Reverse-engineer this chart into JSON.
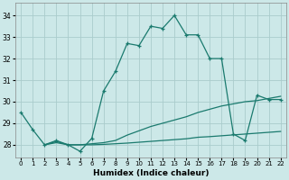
{
  "xlabel": "Humidex (Indice chaleur)",
  "background_color": "#cce8e8",
  "grid_color": "#aacccc",
  "line_color": "#1a7a6e",
  "xlim": [
    -0.5,
    22.5
  ],
  "ylim": [
    27.4,
    34.6
  ],
  "yticks": [
    28,
    29,
    30,
    31,
    32,
    33,
    34
  ],
  "xticks": [
    0,
    1,
    2,
    3,
    4,
    5,
    6,
    7,
    8,
    9,
    10,
    11,
    12,
    13,
    14,
    15,
    16,
    17,
    18,
    19,
    20,
    21,
    22
  ],
  "lines": [
    {
      "x": [
        0,
        1,
        2,
        3,
        4,
        5,
        6,
        7,
        8,
        9,
        10,
        11,
        12,
        13,
        14,
        15,
        16,
        17,
        18,
        19,
        20,
        21,
        22
      ],
      "y": [
        29.5,
        28.7,
        28.0,
        28.2,
        28.0,
        27.7,
        28.3,
        30.5,
        31.4,
        32.7,
        32.6,
        33.5,
        33.4,
        34.0,
        33.1,
        33.1,
        32.0,
        32.0,
        28.5,
        28.2,
        30.3,
        30.1,
        30.1
      ],
      "marker": true
    },
    {
      "x": [
        2,
        3,
        4,
        5,
        6,
        7,
        8,
        9,
        10,
        11,
        12,
        13,
        14,
        15,
        16,
        17,
        18,
        19,
        20,
        21,
        22
      ],
      "y": [
        28.0,
        28.15,
        28.0,
        28.0,
        28.05,
        28.1,
        28.2,
        28.45,
        28.65,
        28.85,
        29.0,
        29.15,
        29.3,
        29.5,
        29.65,
        29.8,
        29.9,
        30.0,
        30.05,
        30.15,
        30.25
      ],
      "marker": false
    },
    {
      "x": [
        2,
        3,
        4,
        5,
        6,
        7,
        8,
        9,
        10,
        11,
        12,
        13,
        14,
        15,
        16,
        17,
        18,
        19,
        20,
        21,
        22
      ],
      "y": [
        28.0,
        28.1,
        28.0,
        28.0,
        28.0,
        28.02,
        28.05,
        28.08,
        28.12,
        28.16,
        28.2,
        28.24,
        28.28,
        28.35,
        28.38,
        28.42,
        28.46,
        28.5,
        28.54,
        28.58,
        28.62
      ],
      "marker": false
    }
  ]
}
